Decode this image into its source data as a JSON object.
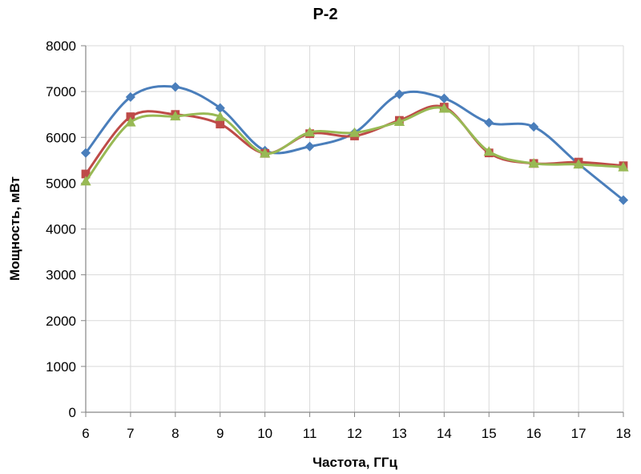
{
  "chart_data": {
    "type": "line",
    "title": "P-2",
    "xlabel": "Частота, ГГц",
    "ylabel": "Мощность, мВт",
    "x": [
      6,
      7,
      8,
      9,
      10,
      11,
      12,
      13,
      14,
      15,
      16,
      17,
      18
    ],
    "xlim": [
      6,
      18
    ],
    "ylim": [
      0,
      8000
    ],
    "yticks": [
      0,
      1000,
      2000,
      3000,
      4000,
      5000,
      6000,
      7000,
      8000
    ],
    "grid": true,
    "legend": "none",
    "series": [
      {
        "color": "#4a7ebb",
        "marker": "diamond",
        "values": [
          5660,
          6880,
          7100,
          6640,
          5710,
          5800,
          6100,
          6940,
          6850,
          6320,
          6230,
          5420,
          4630
        ]
      },
      {
        "color": "#be4b48",
        "marker": "square",
        "values": [
          5200,
          6450,
          6500,
          6290,
          5650,
          6080,
          6030,
          6370,
          6660,
          5660,
          5430,
          5460,
          5380
        ]
      },
      {
        "color": "#98b954",
        "marker": "triangle",
        "values": [
          5040,
          6330,
          6460,
          6450,
          5650,
          6110,
          6100,
          6340,
          6630,
          5690,
          5430,
          5410,
          5350
        ]
      }
    ]
  }
}
